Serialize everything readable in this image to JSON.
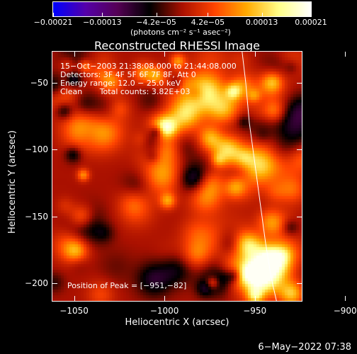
{
  "chart_data": {
    "type": "heatmap",
    "title": "Reconstructed RHESSI Image",
    "xlabel": "Heliocentric X (arcsec)",
    "ylabel": "Heliocentric Y (arcsec)",
    "xlim": [
      -1062,
      -924
    ],
    "ylim": [
      -213,
      -27
    ],
    "x_ticks": [
      -1050,
      -1000,
      -950,
      -900
    ],
    "x_tick_labels": [
      "−1050",
      "−1000",
      "−950",
      "−900"
    ],
    "y_ticks": [
      -50,
      -100,
      -150,
      -200
    ],
    "y_tick_labels": [
      "−50",
      "−100",
      "−150",
      "−200"
    ],
    "colorbar": {
      "min": -0.00021,
      "max": 0.00021,
      "ticks": [
        -0.00021,
        -0.00013,
        -4.2e-05,
        4.2e-05,
        0.00013,
        0.00021
      ],
      "tick_labels": [
        "−0.00021",
        "−0.00013",
        "−4.2e−05",
        "4.2e−05",
        "0.00013",
        "0.00021"
      ],
      "unit_label": "(photons cm⁻² s⁻¹ asec⁻²)",
      "colors": [
        "#0000ff",
        "#5500aa",
        "#550055",
        "#000000",
        "#aa1100",
        "#ff4400",
        "#ffaa00",
        "#ffff88",
        "#ffffff"
      ]
    },
    "annotations": [
      "15−Oct−2003 21:38:08.000 to 21:44:08.000",
      "Detectors: 3F 4F 5F 6F 7F 8F, Att 0",
      "Energy range: 12.0 − 25.0 keV",
      "Clean       Total counts: 3.82E+03",
      "Position of Peak = [−951,−82]"
    ],
    "limb_curve": {
      "x": [
        -957,
        -955,
        -953,
        -950,
        -947,
        -944,
        -941,
        -938
      ],
      "y": [
        -27,
        -50,
        -80,
        -110,
        -140,
        -170,
        -195,
        -213
      ]
    },
    "peak": [
      -951,
      -82
    ]
  },
  "footer": {
    "date": "6−May−2022 07:38"
  }
}
